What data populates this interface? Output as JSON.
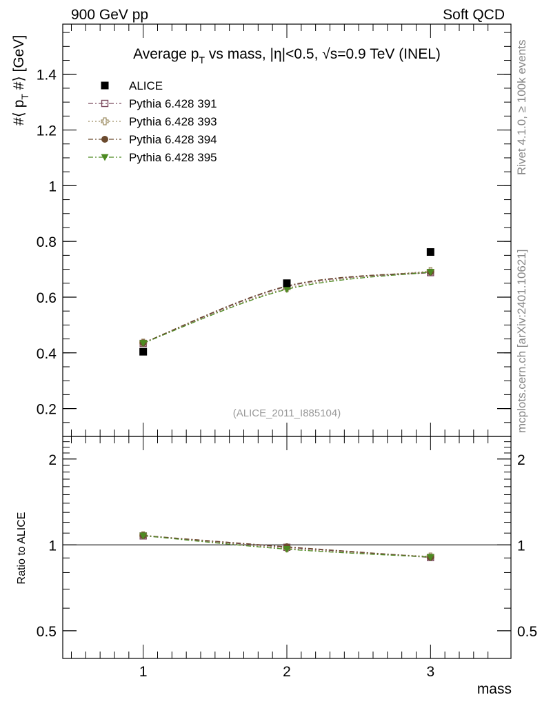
{
  "header": {
    "left": "900 GeV pp",
    "right": "Soft QCD"
  },
  "side_text": {
    "top": "Rivet 4.1.0, ≥ 100k events",
    "bottom": "mcplots.cern.ch [arXiv:2401.10621]"
  },
  "chart_data": [
    {
      "type": "scatter",
      "title": "Average p_T vs mass, |η|<0.5, √s=0.9 TeV (INEL)",
      "title_parts": {
        "a": "Average p",
        "sub": "T",
        "b": " vs mass, |η|<0.5, √s=0.9 TeV (INEL)"
      },
      "ylabel": "#⟨ p_T #⟩ [GeV]",
      "ylabel_parts": {
        "a": "#⟨ p",
        "sub": "T",
        "b": " #⟩ [GeV]"
      },
      "xlabel": "mass",
      "watermark": "(ALICE_2011_I885104)",
      "xlim": [
        0.44,
        3.56
      ],
      "ylim": [
        0.1,
        1.58
      ],
      "yticks": [
        0.2,
        0.4,
        0.6,
        0.8,
        1.0,
        1.2,
        1.4
      ],
      "ytick_labels": [
        "0.2",
        "0.4",
        "0.6",
        "0.8",
        "1",
        "1.2",
        "1.4"
      ],
      "x": [
        1,
        2,
        3
      ],
      "legend_position": "top-left",
      "series": [
        {
          "name": "ALICE",
          "values": [
            0.404,
            0.65,
            0.762
          ],
          "color": "#000000",
          "marker": "filled-square",
          "line": "none"
        },
        {
          "name": "Pythia 6.428 391",
          "values": [
            0.434,
            0.638,
            0.688
          ],
          "color": "#7b4a5e",
          "marker": "open-square",
          "line": "dash-dot"
        },
        {
          "name": "Pythia 6.428 393",
          "values": [
            0.437,
            0.632,
            0.694
          ],
          "color": "#9c8c62",
          "marker": "open-cross",
          "line": "dot"
        },
        {
          "name": "Pythia 6.428 394",
          "values": [
            0.436,
            0.64,
            0.69
          ],
          "color": "#6b4a2e",
          "marker": "filled-circle",
          "line": "dash-dot"
        },
        {
          "name": "Pythia 6.428 395",
          "values": [
            0.435,
            0.628,
            0.69
          ],
          "color": "#4d8a22",
          "marker": "filled-triangle-down",
          "line": "dash-dot"
        }
      ]
    },
    {
      "type": "scatter",
      "title": "",
      "ylabel": "Ratio to ALICE",
      "xlabel": "mass",
      "xlim": [
        0.44,
        3.56
      ],
      "ylim": [
        0.4,
        2.4
      ],
      "yscale": "log",
      "yticks": [
        0.5,
        1,
        2
      ],
      "ytick_labels": [
        "0.5",
        "1",
        "2"
      ],
      "xticks": [
        1,
        2,
        3
      ],
      "xtick_labels": [
        "1",
        "2",
        "3"
      ],
      "reference_line": 1,
      "x": [
        1,
        2,
        3
      ],
      "series": [
        {
          "name": "Pythia 6.428 391",
          "values": [
            1.075,
            0.981,
            0.903
          ],
          "color": "#7b4a5e",
          "marker": "open-square"
        },
        {
          "name": "Pythia 6.428 393",
          "values": [
            1.082,
            0.972,
            0.911
          ],
          "color": "#9c8c62",
          "marker": "open-cross"
        },
        {
          "name": "Pythia 6.428 394",
          "values": [
            1.079,
            0.985,
            0.906
          ],
          "color": "#6b4a2e",
          "marker": "filled-circle"
        },
        {
          "name": "Pythia 6.428 395",
          "values": [
            1.077,
            0.966,
            0.906
          ],
          "color": "#4d8a22",
          "marker": "filled-triangle-down"
        }
      ]
    }
  ]
}
